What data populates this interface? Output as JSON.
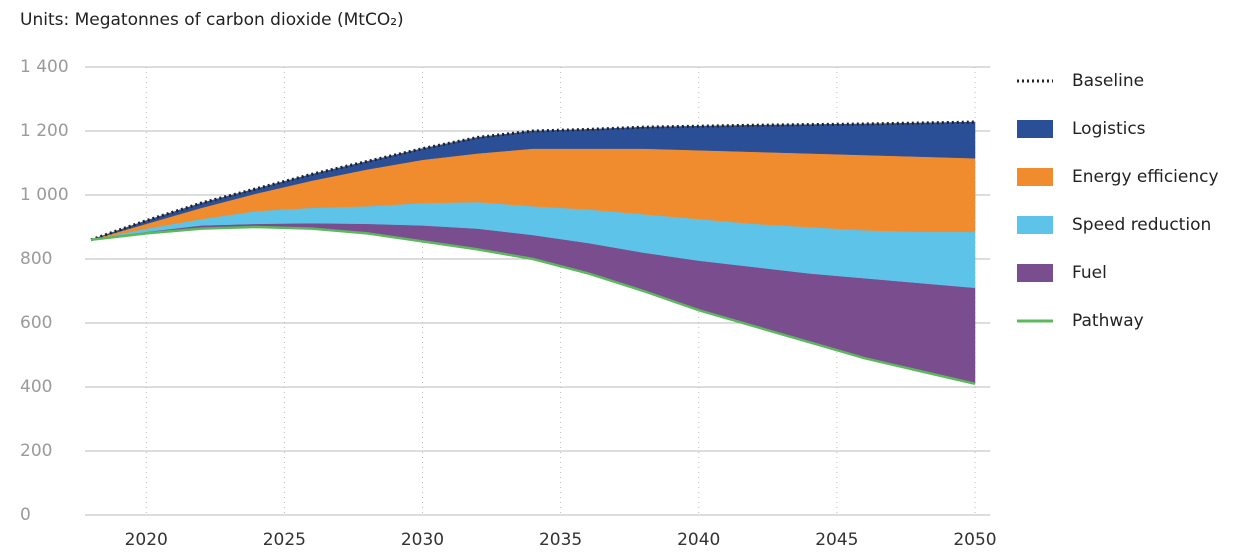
{
  "chart_data": {
    "type": "stacked_area",
    "title": "Units: Megatonnes of carbon dioxide (MtCO₂)",
    "x": [
      2018,
      2020,
      2022,
      2024,
      2026,
      2028,
      2030,
      2032,
      2034,
      2036,
      2038,
      2040,
      2042,
      2044,
      2046,
      2048,
      2050
    ],
    "xlim": [
      2018,
      2050
    ],
    "xticks": [
      2020,
      2025,
      2030,
      2035,
      2040,
      2045,
      2050
    ],
    "ylim": [
      0,
      1400
    ],
    "yticks": [
      0,
      200,
      400,
      600,
      800,
      {
        "value": 1000,
        "label": "1 000"
      },
      {
        "value": 1200,
        "label": "1 200"
      },
      {
        "value": 1400,
        "label": "1 400"
      }
    ],
    "grid": true,
    "legend": "right",
    "series": [
      {
        "name": "Baseline",
        "color": "#222222",
        "type": "line",
        "dash": "dotted",
        "values": [
          860,
          920,
          975,
          1020,
          1065,
          1105,
          1145,
          1180,
          1200,
          1205,
          1212,
          1215,
          1218,
          1220,
          1222,
          1225,
          1228
        ]
      },
      {
        "name": "Logistics",
        "color": "#2b4f96",
        "type": "area",
        "values": [
          0,
          10,
          15,
          15,
          20,
          25,
          35,
          50,
          55,
          60,
          67,
          75,
          83,
          90,
          97,
          105,
          113
        ]
      },
      {
        "name": "Energy efficiency",
        "color": "#f08c2e",
        "type": "area",
        "values": [
          0,
          15,
          35,
          55,
          85,
          115,
          135,
          152,
          180,
          190,
          205,
          215,
          225,
          230,
          235,
          235,
          230
        ]
      },
      {
        "name": "Speed reduction",
        "color": "#5ec3e8",
        "type": "area",
        "values": [
          0,
          10,
          20,
          40,
          48,
          55,
          70,
          83,
          90,
          105,
          120,
          130,
          135,
          145,
          150,
          160,
          175
        ]
      },
      {
        "name": "Fuel",
        "color": "#7a4d8f",
        "type": "area",
        "values": [
          0,
          5,
          10,
          10,
          17,
          30,
          50,
          65,
          75,
          95,
          120,
          155,
          185,
          215,
          250,
          275,
          300
        ]
      },
      {
        "name": "Pathway",
        "color": "#5cb85c",
        "type": "line",
        "values": [
          860,
          880,
          895,
          900,
          895,
          880,
          855,
          830,
          800,
          755,
          700,
          640,
          590,
          540,
          490,
          450,
          410
        ]
      }
    ]
  }
}
